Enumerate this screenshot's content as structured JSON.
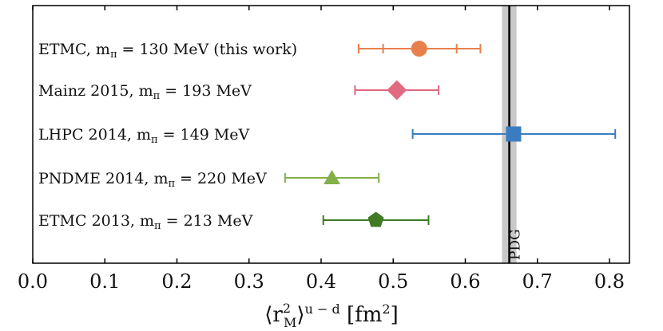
{
  "chart_data": {
    "type": "scatter",
    "title": "",
    "xlabel": "⟨r²ₘ⟩ᵘ⁻ᵈ [fm²]",
    "xlabel_parts": {
      "open": "⟨r",
      "sup": "2",
      "sub": "M",
      "close": "⟩",
      "sup2": "u − d",
      "unit": " [fm",
      "unit_sup": "2",
      "unit_close": "]"
    },
    "ylabel": "",
    "xlim": [
      0.0,
      0.83
    ],
    "xticks": [
      0.0,
      0.1,
      0.2,
      0.3,
      0.4,
      0.5,
      0.6,
      0.7,
      0.8
    ],
    "xtick_labels": [
      "0.0",
      "0.1",
      "0.2",
      "0.3",
      "0.4",
      "0.5",
      "0.6",
      "0.7",
      "0.8"
    ],
    "grid": false,
    "reference": {
      "label": "PDG",
      "value": 0.661,
      "band": [
        0.651,
        0.671
      ],
      "line_color": "#000000",
      "band_color": "#c8c8c8"
    },
    "series": [
      {
        "name": "ETMC, m_π = 130 MeV (this work)",
        "label": {
          "pre": "ETMC, m",
          "sub": "π",
          "post": " = 130 MeV (this work)"
        },
        "value": 0.536,
        "stat": [
          0.486,
          0.588
        ],
        "total": [
          0.452,
          0.621
        ],
        "marker": "circle",
        "color": "#e8804c"
      },
      {
        "name": "Mainz 2015, m_π = 193 MeV",
        "label": {
          "pre": "Mainz 2015, m",
          "sub": "π",
          "post": " = 193 MeV"
        },
        "value": 0.505,
        "total": [
          0.447,
          0.563
        ],
        "marker": "diamond",
        "color": "#e06a80"
      },
      {
        "name": "LHPC 2014, m_π = 149 MeV",
        "label": {
          "pre": "LHPC 2014, m",
          "sub": "π",
          "post": " = 149 MeV"
        },
        "value": 0.667,
        "total": [
          0.527,
          0.808
        ],
        "marker": "square",
        "color": "#3a7cc0"
      },
      {
        "name": "PNDME 2014, m_π = 220 MeV",
        "label": {
          "pre": "PNDME 2014, m",
          "sub": "π",
          "post": " = 220 MeV"
        },
        "value": 0.415,
        "total": [
          0.35,
          0.48
        ],
        "marker": "triangle",
        "color": "#84b04c"
      },
      {
        "name": "ETMC 2013, m_π = 213 MeV",
        "label": {
          "pre": "ETMC 2013, m",
          "sub": "π",
          "post": " = 213 MeV"
        },
        "value": 0.476,
        "total": [
          0.403,
          0.549
        ],
        "marker": "pentagon",
        "color": "#3f7a25"
      }
    ]
  }
}
